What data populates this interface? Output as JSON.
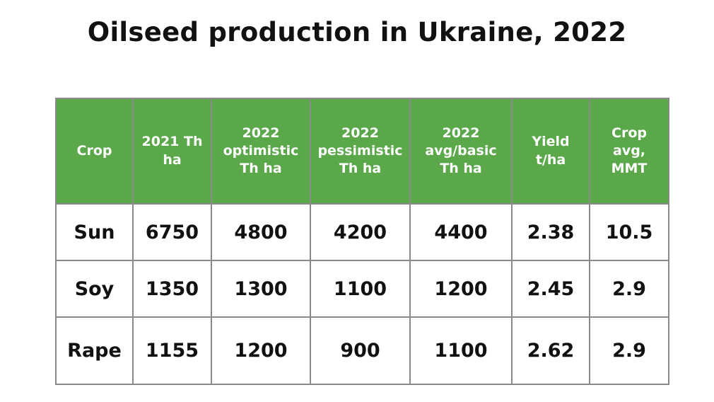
{
  "title": "Oilseed production in Ukraine, 2022",
  "chart_data": {
    "type": "table",
    "title": "Oilseed production in Ukraine, 2022",
    "columns": [
      "Crop",
      "2021 Th\nha",
      "2022\noptimistic\nTh ha",
      "2022\npessimistic\nTh ha",
      "2022\navg/basic\nTh ha",
      "Yield\nt/ha",
      "Crop\navg,\nMMT"
    ],
    "rows": [
      [
        "Sun",
        "6750",
        "4800",
        "4200",
        "4400",
        "2.38",
        "10.5"
      ],
      [
        "Soy",
        "1350",
        "1300",
        "1100",
        "1200",
        "2.45",
        "2.9"
      ],
      [
        "Rape",
        "1155",
        "1200",
        "900",
        "1100",
        "2.62",
        "2.9"
      ]
    ]
  },
  "colors": {
    "header_bg": "#5aa84a",
    "header_text": "#ffffff",
    "border": "#8a8a8a"
  }
}
